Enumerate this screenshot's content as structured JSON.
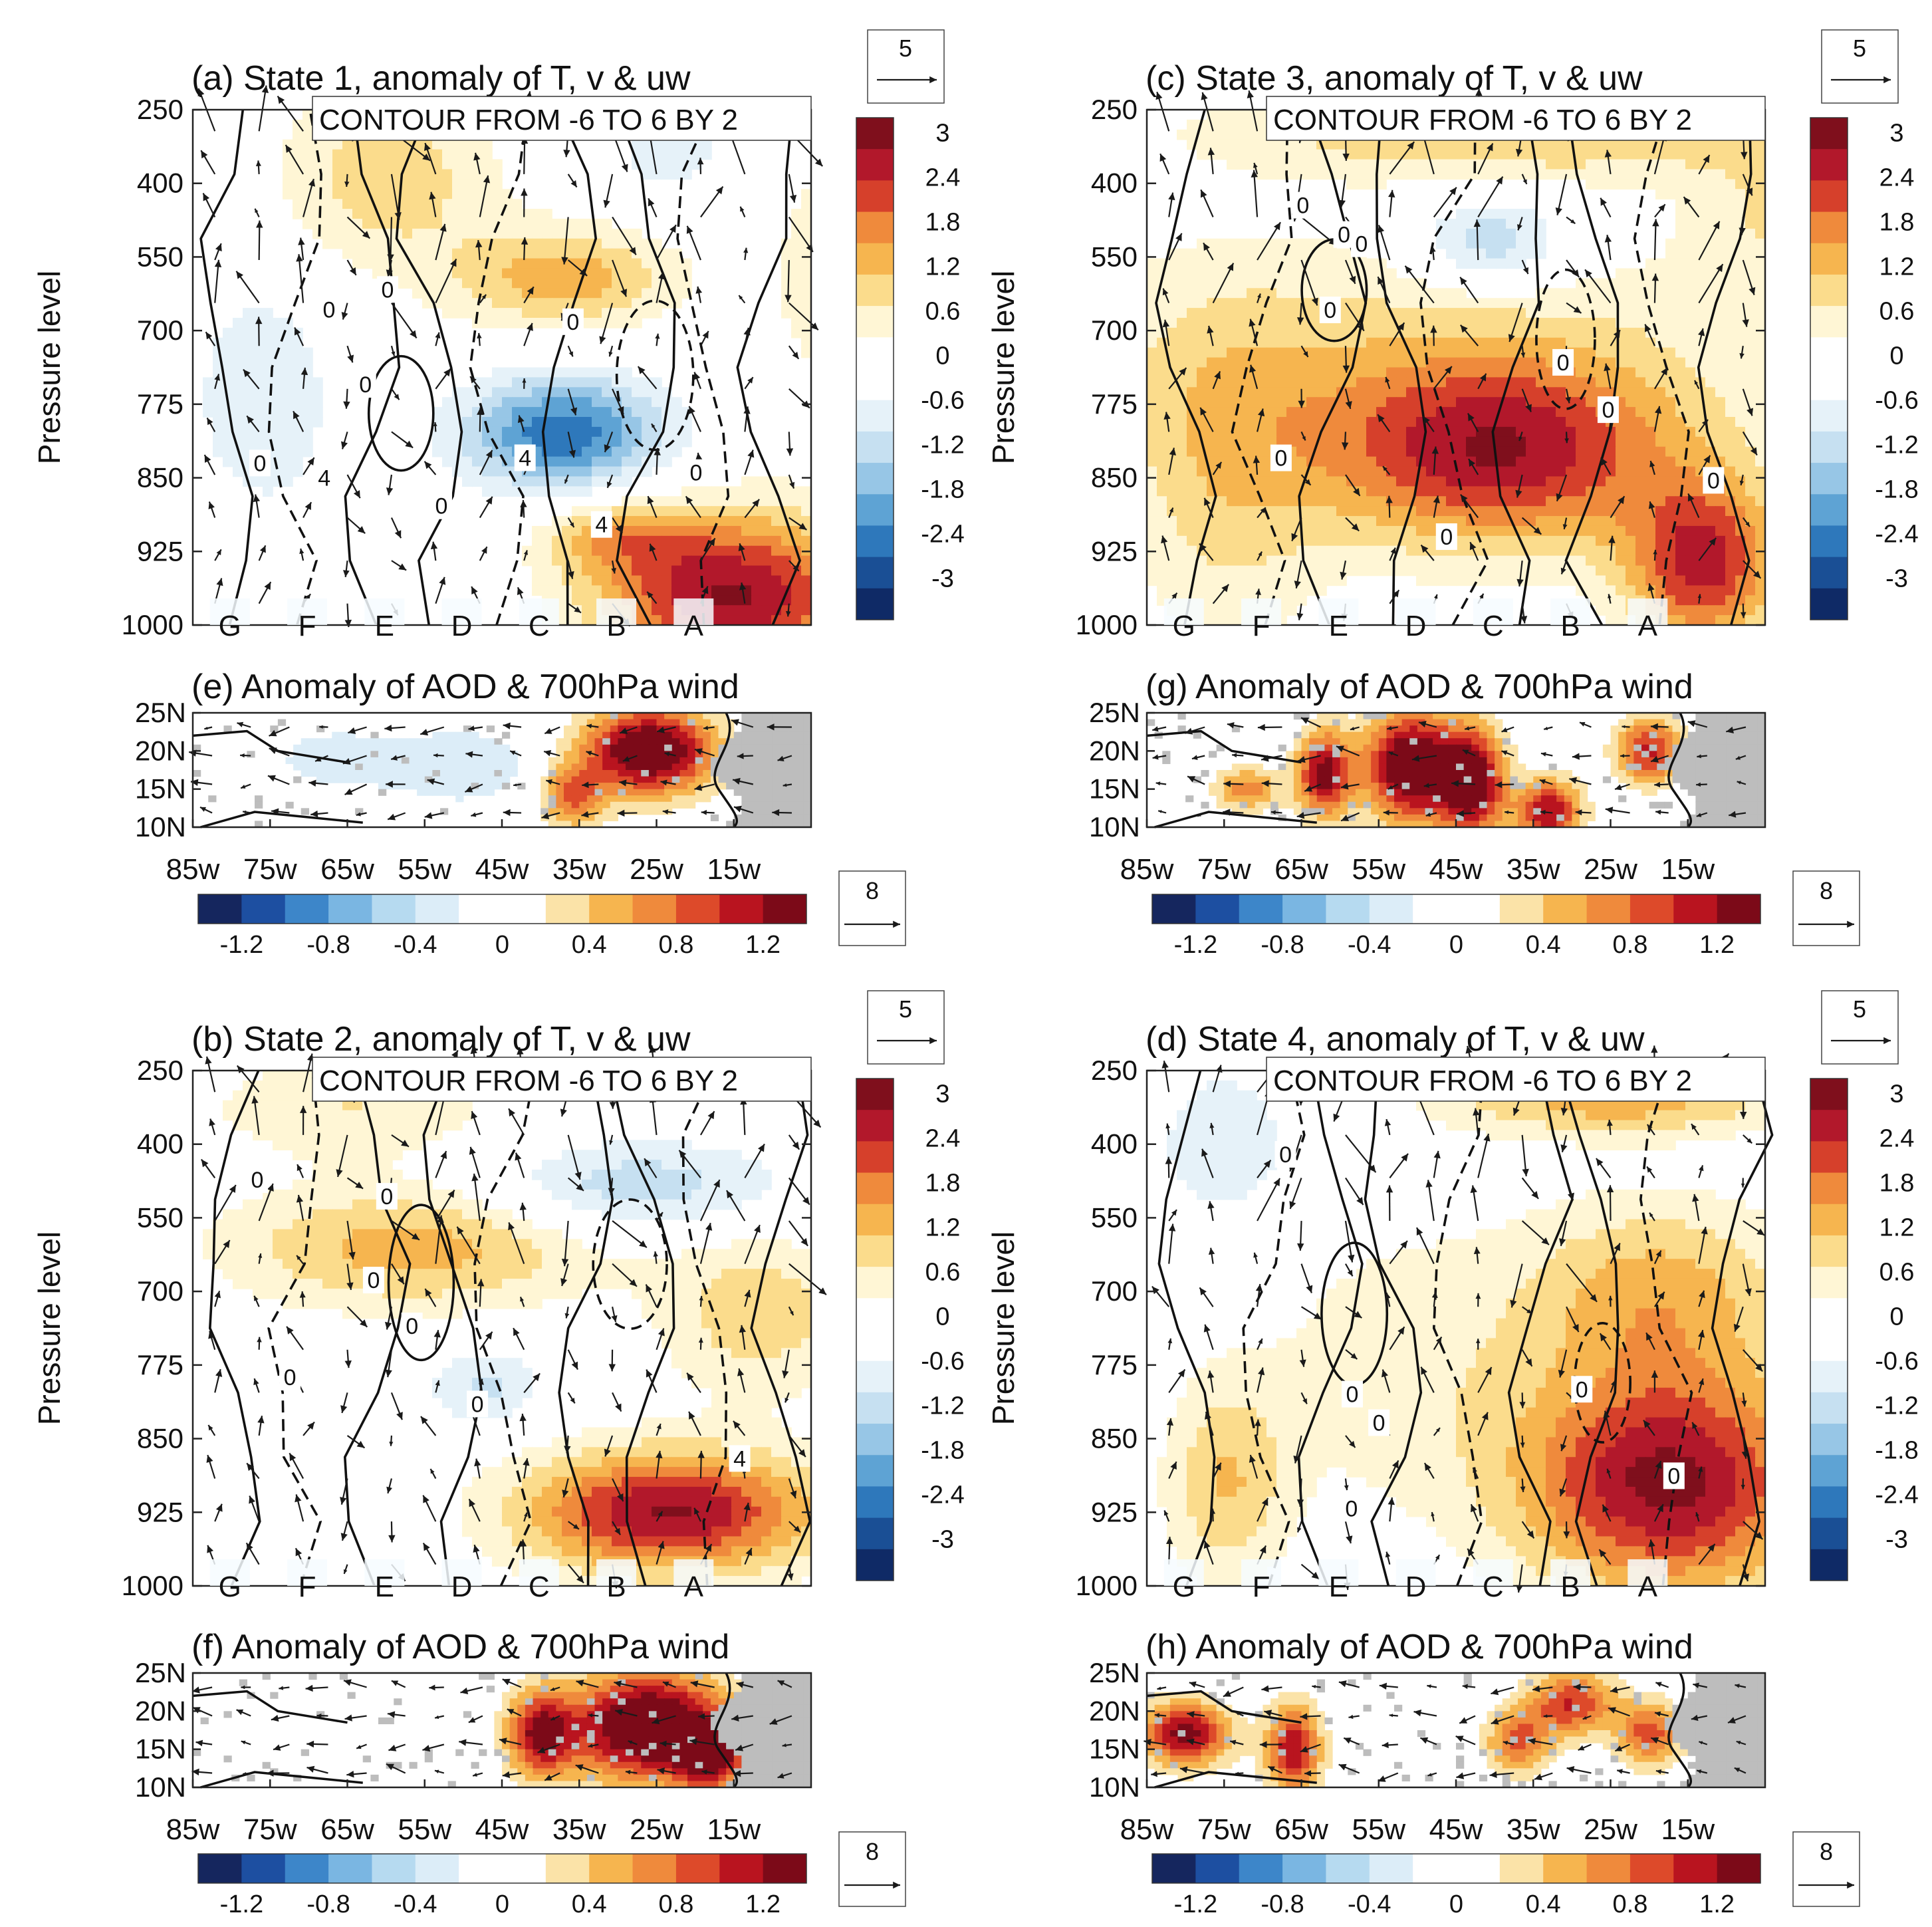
{
  "figure": {
    "shared": {
      "contour_note": "CONTOUR FROM -6 TO 6 BY 2",
      "y_axis_label": "Pressure level",
      "pressure_ticks": [
        "250",
        "400",
        "550",
        "700",
        "775",
        "850",
        "925",
        "1000"
      ],
      "station_labels": [
        "G",
        "F",
        "E",
        "D",
        "C",
        "B",
        "A"
      ],
      "lat_ticks": [
        "25N",
        "20N",
        "15N",
        "10N"
      ],
      "lon_ticks": [
        "85w",
        "75w",
        "65w",
        "55w",
        "45w",
        "35w",
        "25w",
        "15w"
      ],
      "temp_colorbar": {
        "labels": [
          "3",
          "2.4",
          "1.8",
          "1.2",
          "0.6",
          "0",
          "-0.6",
          "-1.2",
          "-1.8",
          "-2.4",
          "-3"
        ],
        "colors": [
          "#7f0f1c",
          "#b2182b",
          "#d6402b",
          "#ef8a3c",
          "#f6b54f",
          "#fbdc8c",
          "#fff6d5",
          "#ffffff",
          "#ffffff",
          "#e6f2f9",
          "#c6e0f1",
          "#97c6e6",
          "#5ea3d4",
          "#2e78bb",
          "#1a4f95",
          "#0f2a66"
        ]
      },
      "aod_colorbar": {
        "labels": [
          "-1.2",
          "-0.8",
          "-0.4",
          "0",
          "0.4",
          "0.8",
          "1.2"
        ],
        "colors": [
          "#15265e",
          "#1d4fa1",
          "#3d86c9",
          "#7ab6e2",
          "#b6daf0",
          "#dcedf8",
          "#ffffff",
          "#ffffff",
          "#fbe3a8",
          "#f6b54f",
          "#ef8a3c",
          "#dd4a2a",
          "#b9141f",
          "#7c0a18"
        ]
      },
      "ref_vector_temp": "5",
      "ref_vector_aod": "8",
      "colors": {
        "axis": "#222222",
        "contour": "#111111",
        "land": "#bdbdbd",
        "arrow": "#1a1a1a"
      }
    },
    "panels": [
      {
        "id": "a",
        "title": "(a) State 1, anomaly of T, v & uw",
        "contour_labels": [
          "0",
          "0",
          "0",
          "0",
          "0",
          "4",
          "4",
          "4",
          "0",
          "0"
        ]
      },
      {
        "id": "c",
        "title": "(c) State 3, anomaly of T, v & uw",
        "contour_labels": [
          "0",
          "0",
          "0",
          "0",
          "0",
          "0",
          "0",
          "0",
          "0"
        ]
      },
      {
        "id": "b",
        "title": "(b) State 2, anomaly of T, v & uw",
        "contour_labels": [
          "0",
          "0",
          "0",
          "0",
          "4",
          "0",
          "0"
        ]
      },
      {
        "id": "d",
        "title": "(d) State 4, anomaly of T, v & uw",
        "contour_labels": [
          "0",
          "0",
          "0",
          "0",
          "0",
          "0"
        ]
      }
    ],
    "aod_panels": [
      {
        "id": "e",
        "title": "(e) Anomaly of AOD & 700hPa wind"
      },
      {
        "id": "g",
        "title": "(g) Anomaly of AOD & 700hPa wind"
      },
      {
        "id": "f",
        "title": "(f) Anomaly of AOD & 700hPa wind"
      },
      {
        "id": "h",
        "title": "(h) Anomaly of AOD & 700hPa wind"
      }
    ]
  },
  "chart_data": [
    {
      "type": "heatmap",
      "panel": "a",
      "title": "(a) State 1, anomaly of T, v & uw",
      "ylabel": "Pressure level",
      "y_categories": [
        "250",
        "400",
        "550",
        "700",
        "775",
        "850",
        "925",
        "1000"
      ],
      "x_categories": [
        "G",
        "F",
        "E",
        "D",
        "C",
        "B",
        "A"
      ],
      "color_range": [
        -3,
        3
      ],
      "blobs": [
        {
          "x": 5.6,
          "y": 6.6,
          "value": 3.2,
          "sx": 1.1,
          "sy": 0.8
        },
        {
          "x": 3.7,
          "y": 4.4,
          "value": -2.6,
          "sx": 0.8,
          "sy": 0.55
        },
        {
          "x": 3.7,
          "y": 2.3,
          "value": 1.6,
          "sx": 0.9,
          "sy": 0.5
        },
        {
          "x": 1.7,
          "y": 0.9,
          "value": 1.2,
          "sx": 0.9,
          "sy": 0.9
        },
        {
          "x": 0.3,
          "y": 3.9,
          "value": -0.8,
          "sx": 0.6,
          "sy": 1.2
        },
        {
          "x": 4.9,
          "y": 0.6,
          "value": -0.7,
          "sx": 0.5,
          "sy": 0.4
        },
        {
          "x": 6.9,
          "y": 2.2,
          "value": 0.9,
          "sx": 0.6,
          "sy": 1.3
        },
        {
          "x": 4.3,
          "y": 5.8,
          "value": 1.2,
          "sx": 0.6,
          "sy": 0.35
        }
      ],
      "contour_interval": {
        "from": -6,
        "to": 6,
        "by": 2
      }
    },
    {
      "type": "heatmap",
      "panel": "c",
      "title": "(c) State 3, anomaly of T, v & uw",
      "ylabel": "Pressure level",
      "y_categories": [
        "250",
        "400",
        "550",
        "700",
        "775",
        "850",
        "925",
        "1000"
      ],
      "x_categories": [
        "G",
        "F",
        "E",
        "D",
        "C",
        "B",
        "A"
      ],
      "color_range": [
        -3,
        3
      ],
      "blobs": [
        {
          "x": 3.5,
          "y": 4.7,
          "value": 2.6,
          "sx": 1.4,
          "sy": 0.9
        },
        {
          "x": 5.8,
          "y": 6.2,
          "value": 2.8,
          "sx": 0.6,
          "sy": 0.8
        },
        {
          "x": 3.4,
          "y": 1.8,
          "value": -1.5,
          "sx": 0.6,
          "sy": 0.45
        },
        {
          "x": 3.7,
          "y": 0.3,
          "value": 1.4,
          "sx": 2.4,
          "sy": 0.45
        },
        {
          "x": 2.5,
          "y": 3.5,
          "value": 1.0,
          "sx": 3.0,
          "sy": 1.3
        },
        {
          "x": 0.4,
          "y": 5.2,
          "value": 0.9,
          "sx": 0.8,
          "sy": 1.8
        },
        {
          "x": 6.8,
          "y": 1.4,
          "value": 0.9,
          "sx": 0.8,
          "sy": 0.8
        }
      ],
      "contour_interval": {
        "from": -6,
        "to": 6,
        "by": 2
      }
    },
    {
      "type": "heatmap",
      "panel": "b",
      "title": "(b) State 2, anomaly of T, v & uw",
      "ylabel": "Pressure level",
      "y_categories": [
        "250",
        "400",
        "550",
        "700",
        "775",
        "850",
        "925",
        "1000"
      ],
      "x_categories": [
        "G",
        "F",
        "E",
        "D",
        "C",
        "B",
        "A"
      ],
      "color_range": [
        -3,
        3
      ],
      "blobs": [
        {
          "x": 4.9,
          "y": 6.0,
          "value": 3.2,
          "sx": 1.2,
          "sy": 0.6
        },
        {
          "x": 2.0,
          "y": 2.4,
          "value": 1.6,
          "sx": 1.5,
          "sy": 0.6
        },
        {
          "x": 4.5,
          "y": 1.6,
          "value": -1.3,
          "sx": 1.2,
          "sy": 0.45
        },
        {
          "x": 2.8,
          "y": 4.3,
          "value": -1.0,
          "sx": 0.45,
          "sy": 0.4
        },
        {
          "x": 5.9,
          "y": 3.3,
          "value": 1.2,
          "sx": 0.8,
          "sy": 0.8
        },
        {
          "x": 1.3,
          "y": 0.5,
          "value": 0.9,
          "sx": 1.2,
          "sy": 0.5
        }
      ],
      "contour_interval": {
        "from": -6,
        "to": 6,
        "by": 2
      }
    },
    {
      "type": "heatmap",
      "panel": "d",
      "title": "(d) State 4, anomaly of T, v & uw",
      "ylabel": "Pressure level",
      "y_categories": [
        "250",
        "400",
        "550",
        "700",
        "775",
        "850",
        "925",
        "1000"
      ],
      "x_categories": [
        "G",
        "F",
        "E",
        "D",
        "C",
        "B",
        "A"
      ],
      "color_range": [
        -3,
        3
      ],
      "blobs": [
        {
          "x": 5.4,
          "y": 5.6,
          "value": 3.3,
          "sx": 1.2,
          "sy": 1.1
        },
        {
          "x": 5.3,
          "y": 3.0,
          "value": 1.5,
          "sx": 1.1,
          "sy": 0.9
        },
        {
          "x": 4.8,
          "y": 0.4,
          "value": 1.6,
          "sx": 1.4,
          "sy": 0.35
        },
        {
          "x": 0.4,
          "y": 1.0,
          "value": -0.8,
          "sx": 0.6,
          "sy": 0.8
        },
        {
          "x": 0.4,
          "y": 5.6,
          "value": 1.3,
          "sx": 0.5,
          "sy": 1.0
        },
        {
          "x": 2.4,
          "y": 4.0,
          "value": 0.7,
          "sx": 1.2,
          "sy": 1.5
        }
      ],
      "contour_interval": {
        "from": -6,
        "to": 6,
        "by": 2
      }
    },
    {
      "type": "heatmap",
      "panel": "e",
      "title": "(e) Anomaly of AOD & 700hPa wind",
      "x_ticks": [
        "85w",
        "75w",
        "65w",
        "55w",
        "45w",
        "35w",
        "25w",
        "15w"
      ],
      "y_ticks": [
        "25N",
        "20N",
        "15N",
        "10N"
      ],
      "xlim": [
        -85,
        -5
      ],
      "ylim": [
        10,
        25
      ],
      "color_range": [
        -1.4,
        1.4
      ],
      "blobs": [
        {
          "lon": -26,
          "lat": 20,
          "value": 1.6,
          "sx": 6,
          "sy": 4
        },
        {
          "lon": -36,
          "lat": 14,
          "value": 0.8,
          "sx": 3,
          "sy": 3
        },
        {
          "lon": -50,
          "lat": 18,
          "value": -0.35,
          "sx": 8,
          "sy": 4
        },
        {
          "lon": -67,
          "lat": 19,
          "value": -0.3,
          "sx": 6,
          "sy": 3
        }
      ]
    },
    {
      "type": "heatmap",
      "panel": "g",
      "title": "(g) Anomaly of AOD & 700hPa wind",
      "x_ticks": [
        "85w",
        "75w",
        "65w",
        "55w",
        "45w",
        "35w",
        "25w",
        "15w"
      ],
      "y_ticks": [
        "25N",
        "20N",
        "15N",
        "10N"
      ],
      "xlim": [
        -85,
        -5
      ],
      "ylim": [
        10,
        25
      ],
      "color_range": [
        -1.4,
        1.4
      ],
      "blobs": [
        {
          "lon": -51,
          "lat": 18,
          "value": 1.6,
          "sx": 4,
          "sy": 5
        },
        {
          "lon": -43,
          "lat": 16,
          "value": 1.5,
          "sx": 3,
          "sy": 5
        },
        {
          "lon": -62,
          "lat": 17,
          "value": 1.3,
          "sx": 2.5,
          "sy": 4
        },
        {
          "lon": -33,
          "lat": 12,
          "value": 1.2,
          "sx": 3,
          "sy": 3
        },
        {
          "lon": -20,
          "lat": 20,
          "value": 1.1,
          "sx": 3,
          "sy": 3
        },
        {
          "lon": -72,
          "lat": 15,
          "value": 0.7,
          "sx": 3,
          "sy": 2
        }
      ]
    },
    {
      "type": "heatmap",
      "panel": "f",
      "title": "(f) Anomaly of AOD & 700hPa wind",
      "x_ticks": [
        "85w",
        "75w",
        "65w",
        "55w",
        "45w",
        "35w",
        "25w",
        "15w"
      ],
      "y_ticks": [
        "25N",
        "20N",
        "15N",
        "10N"
      ],
      "xlim": [
        -85,
        -5
      ],
      "ylim": [
        10,
        25
      ],
      "color_range": [
        -1.4,
        1.4
      ],
      "blobs": [
        {
          "lon": -26,
          "lat": 18,
          "value": 1.7,
          "sx": 7,
          "sy": 5
        },
        {
          "lon": -40,
          "lat": 17,
          "value": 1.2,
          "sx": 3,
          "sy": 4
        },
        {
          "lon": -18,
          "lat": 14,
          "value": 1.2,
          "sx": 3,
          "sy": 3
        }
      ]
    },
    {
      "type": "heatmap",
      "panel": "h",
      "title": "(h) Anomaly of AOD & 700hPa wind",
      "x_ticks": [
        "85w",
        "75w",
        "65w",
        "55w",
        "45w",
        "35w",
        "25w",
        "15w"
      ],
      "y_ticks": [
        "25N",
        "20N",
        "15N",
        "10N"
      ],
      "xlim": [
        -85,
        -5
      ],
      "ylim": [
        10,
        25
      ],
      "color_range": [
        -1.4,
        1.4
      ],
      "blobs": [
        {
          "lon": -80,
          "lat": 17,
          "value": 1.3,
          "sx": 4,
          "sy": 3
        },
        {
          "lon": -66,
          "lat": 15,
          "value": 1.2,
          "sx": 2.5,
          "sy": 4
        },
        {
          "lon": -30,
          "lat": 21,
          "value": 1.0,
          "sx": 4,
          "sy": 3
        },
        {
          "lon": -37,
          "lat": 16,
          "value": 0.8,
          "sx": 3,
          "sy": 3
        },
        {
          "lon": -20,
          "lat": 17,
          "value": 0.9,
          "sx": 3,
          "sy": 3
        }
      ]
    }
  ]
}
